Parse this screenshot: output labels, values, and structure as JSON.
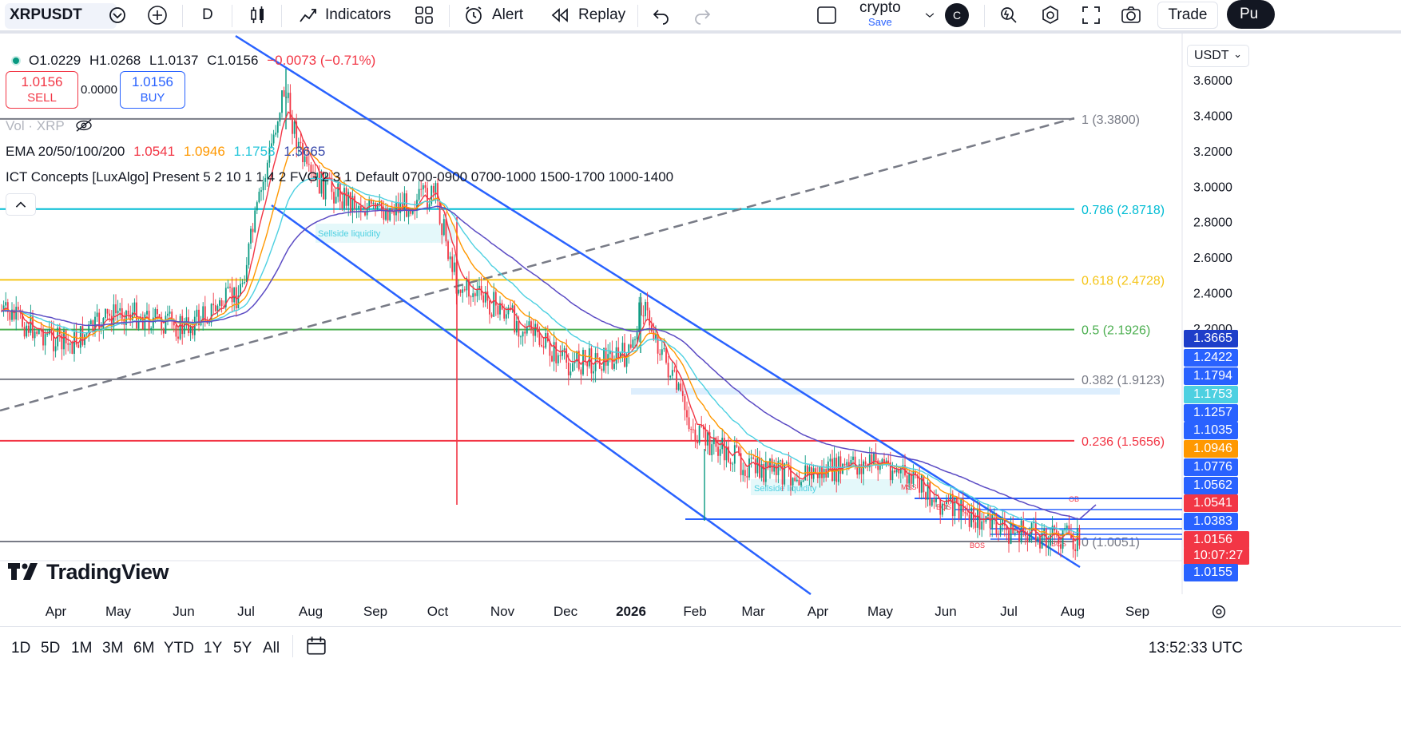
{
  "toolbar": {
    "symbol": "XRPUSDT",
    "interval": "D",
    "indicators_label": "Indicators",
    "alert_label": "Alert",
    "replay_label": "Replay",
    "layout_name": "crypto",
    "layout_save": "Save",
    "avatar_letter": "C",
    "trade_label": "Trade",
    "publish_label": "Pu"
  },
  "legend": {
    "open": "O1.0229",
    "high": "H1.0268",
    "low": "L1.0137",
    "close": "C1.0156",
    "change": "−0.0073 (−0.71%)",
    "vol": "Vol · XRP",
    "ema_label": "EMA 20/50/100/200",
    "ema20": "1.0541",
    "ema50": "1.0946",
    "ema100": "1.1753",
    "ema200": "1.3665",
    "ict": "ICT Concepts [LuxAlgo] Present 5 2 10 1 1 4 2 FVG 2 3 1 Default 0700-0900 0700-1000 1500-1700 1000-1400"
  },
  "trade": {
    "sell_price": "1.0156",
    "sell_label": "SELL",
    "spread": "0.0000",
    "buy_price": "1.0156",
    "buy_label": "BUY"
  },
  "currency_button": "USDT",
  "logo_text": "TradingView",
  "colors": {
    "up": "#089981",
    "down": "#f23645",
    "ema20": "#f23645",
    "ema50": "#ff9800",
    "ema100": "#4dd0e1",
    "ema200": "#5b4bc4",
    "channel": "#2962ff"
  },
  "chart_data": {
    "type": "candlestick",
    "symbol": "XRPUSDT",
    "interval": "1D",
    "ylim": [
      1.0,
      3.7
    ],
    "y_ticks": [
      "3.6000",
      "3.4000",
      "3.2000",
      "3.0000",
      "2.8000",
      "2.6000",
      "2.4000",
      "2.2000"
    ],
    "x_ticks": [
      "Apr",
      "May",
      "Jun",
      "Jul",
      "Aug",
      "Sep",
      "Oct",
      "Nov",
      "Dec",
      "2026",
      "Feb",
      "Mar",
      "Apr",
      "May",
      "Jun",
      "Jul",
      "Aug",
      "Sep"
    ],
    "close_path": [
      {
        "x": "Mar",
        "y": 2.3
      },
      {
        "x": "Apr",
        "y": 2.1
      },
      {
        "x": "May",
        "y": 2.3
      },
      {
        "x": "Jun",
        "y": 2.2
      },
      {
        "x": "Jul",
        "y": 2.4
      },
      {
        "x": "Jul 18",
        "y": 3.55
      },
      {
        "x": "Aug",
        "y": 3.05
      },
      {
        "x": "Sep",
        "y": 2.85
      },
      {
        "x": "Oct",
        "y": 2.95
      },
      {
        "x": "Oct 10",
        "y": 2.45
      },
      {
        "x": "Nov",
        "y": 2.3
      },
      {
        "x": "Dec",
        "y": 2.0
      },
      {
        "x": "2026",
        "y": 2.05
      },
      {
        "x": "Jan 6",
        "y": 2.35
      },
      {
        "x": "Feb",
        "y": 1.6
      },
      {
        "x": "Mar",
        "y": 1.4
      },
      {
        "x": "Apr",
        "y": 1.38
      },
      {
        "x": "May",
        "y": 1.45
      },
      {
        "x": "Jun",
        "y": 1.2
      },
      {
        "x": "Jul",
        "y": 1.05
      },
      {
        "x": "Aug",
        "y": 1.0156
      }
    ],
    "fib_levels": [
      {
        "label": "1 (3.3800)",
        "value": 3.38,
        "color": "#787b86"
      },
      {
        "label": "0.786 (2.8718)",
        "value": 2.8718,
        "color": "#00bcd4"
      },
      {
        "label": "0.618 (2.4728)",
        "value": 2.4728,
        "color": "#f5c518"
      },
      {
        "label": "0.5 (2.1926)",
        "value": 2.1926,
        "color": "#4caf50"
      },
      {
        "label": "0.382 (1.9123)",
        "value": 1.9123,
        "color": "#787b86"
      },
      {
        "label": "0.236 (1.5656)",
        "value": 1.5656,
        "color": "#f23645"
      },
      {
        "label": "0 (1.0051)",
        "value": 1.0051,
        "color": "#787b86"
      }
    ],
    "annotations": [
      "Sellside liquidity",
      "Sellside liquidity",
      "MSS",
      "OB",
      "BOS",
      "BOS",
      "BOS"
    ],
    "price_tags": [
      {
        "value": "1.3665",
        "color": "#1e3ec9"
      },
      {
        "value": "1.2422",
        "color": "#2962ff"
      },
      {
        "value": "1.1794",
        "color": "#2962ff"
      },
      {
        "value": "1.1753",
        "color": "#4dd0e1"
      },
      {
        "value": "1.1257",
        "color": "#2962ff"
      },
      {
        "value": "1.1035",
        "color": "#2962ff"
      },
      {
        "value": "1.0946",
        "color": "#ff9800"
      },
      {
        "value": "1.0776",
        "color": "#2962ff"
      },
      {
        "value": "1.0562",
        "color": "#2962ff"
      },
      {
        "value": "1.0541",
        "color": "#f23645"
      },
      {
        "value": "1.0383",
        "color": "#2962ff"
      },
      {
        "value": "1.0156",
        "color": "#f23645"
      },
      {
        "value": "10:07:27",
        "color": "#f23645"
      },
      {
        "value": "1.0155",
        "color": "#2962ff"
      }
    ]
  },
  "ranges": [
    "1D",
    "5D",
    "1M",
    "3M",
    "6M",
    "YTD",
    "1Y",
    "5Y",
    "All"
  ],
  "clock": "13:52:33 UTC"
}
